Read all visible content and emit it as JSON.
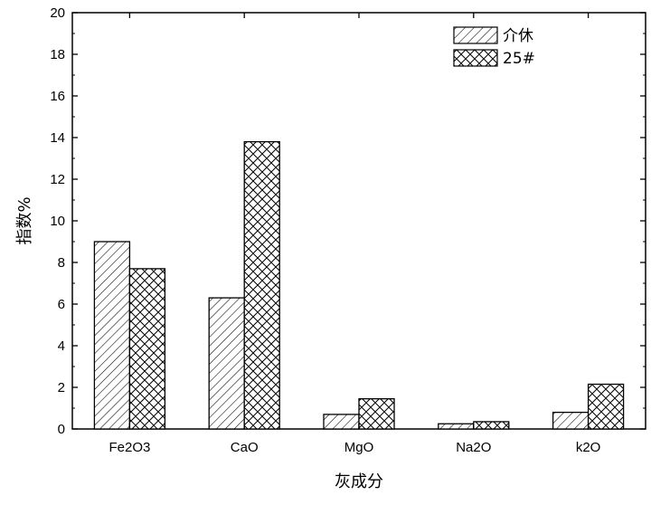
{
  "chart_data": {
    "type": "bar",
    "categories": [
      "Fe2O3",
      "CaO",
      "MgO",
      "Na2O",
      "k2O"
    ],
    "series": [
      {
        "name": "介休",
        "values": [
          9.0,
          6.3,
          0.7,
          0.25,
          0.8
        ],
        "pattern": "diagonal-hatch"
      },
      {
        "name": "25#",
        "values": [
          7.7,
          13.8,
          1.45,
          0.35,
          2.15
        ],
        "pattern": "crosshatch"
      }
    ],
    "ylim": [
      0,
      20
    ],
    "yticks": [
      "0",
      "2",
      "4",
      "6",
      "8",
      "10",
      "12",
      "14",
      "16",
      "18",
      "20"
    ],
    "xlabel": "灰成分",
    "ylabel": "指数%",
    "legend_position": "top-right",
    "grid": false
  }
}
